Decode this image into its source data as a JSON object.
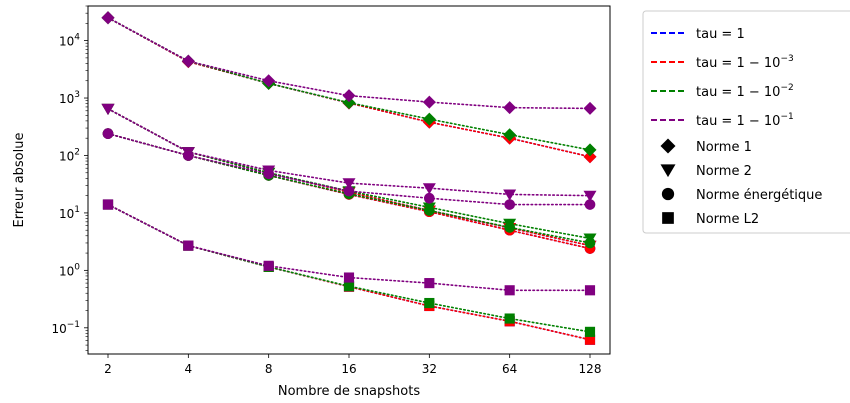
{
  "chart_data": {
    "type": "line",
    "title": "",
    "xlabel": "Nombre de snapshots",
    "ylabel": "Erreur absolue",
    "x": [
      2,
      4,
      8,
      16,
      32,
      64,
      128
    ],
    "x_scale": "log2",
    "y_scale": "log10",
    "ylim": [
      0.035,
      40000
    ],
    "x_ticks": [
      "2",
      "4",
      "8",
      "16",
      "32",
      "64",
      "128"
    ],
    "y_ticks": [
      {
        "value": 0.1,
        "base": "10",
        "exp": "−1"
      },
      {
        "value": 1,
        "base": "10",
        "exp": "0"
      },
      {
        "value": 10,
        "base": "10",
        "exp": "1"
      },
      {
        "value": 100,
        "base": "10",
        "exp": "2"
      },
      {
        "value": 1000,
        "base": "10",
        "exp": "3"
      },
      {
        "value": 10000,
        "base": "10",
        "exp": "4"
      }
    ],
    "grid": false,
    "legend_position": "outside-right",
    "tau_series": [
      {
        "label": "tau = 1",
        "label_parts": {
          "base": "tau = 1",
          "exp": ""
        },
        "color": "#0000ff"
      },
      {
        "label": "tau = 1 − 10⁻³",
        "label_parts": {
          "base": "tau = 1 − 10",
          "exp": "−3"
        },
        "color": "#ff0000"
      },
      {
        "label": "tau = 1 − 10⁻²",
        "label_parts": {
          "base": "tau = 1 − 10",
          "exp": "−2"
        },
        "color": "#008000"
      },
      {
        "label": "tau = 1 − 10⁻¹",
        "label_parts": {
          "base": "tau = 1 − 10",
          "exp": "−1"
        },
        "color": "#800080"
      }
    ],
    "norms": [
      {
        "label": "Norme 1",
        "marker": "diamond"
      },
      {
        "label": "Norme 2",
        "marker": "triangle-down"
      },
      {
        "label": "Norme énergétique",
        "marker": "circle"
      },
      {
        "label": "Norme L2",
        "marker": "square"
      }
    ],
    "series": [
      {
        "tau": 0,
        "norm": 0,
        "values": [
          25000,
          4300,
          1800,
          820,
          380,
          200,
          95
        ]
      },
      {
        "tau": 1,
        "norm": 0,
        "values": [
          25000,
          4300,
          1800,
          820,
          380,
          200,
          95
        ]
      },
      {
        "tau": 2,
        "norm": 0,
        "values": [
          25000,
          4400,
          1800,
          830,
          430,
          230,
          125
        ]
      },
      {
        "tau": 3,
        "norm": 0,
        "values": [
          25000,
          4400,
          2000,
          1100,
          850,
          680,
          660
        ]
      },
      {
        "tau": 0,
        "norm": 1,
        "values": [
          650,
          115,
          50,
          23,
          11,
          5.5,
          2.7
        ]
      },
      {
        "tau": 1,
        "norm": 1,
        "values": [
          650,
          115,
          50,
          23,
          11,
          5.5,
          2.7
        ]
      },
      {
        "tau": 2,
        "norm": 1,
        "values": [
          650,
          115,
          50,
          24,
          12.5,
          6.5,
          3.6
        ]
      },
      {
        "tau": 3,
        "norm": 1,
        "values": [
          650,
          115,
          55,
          33,
          27,
          21,
          20
        ]
      },
      {
        "tau": 0,
        "norm": 2,
        "values": [
          240,
          100,
          45,
          21,
          10.5,
          5.0,
          2.4
        ]
      },
      {
        "tau": 1,
        "norm": 2,
        "values": [
          240,
          100,
          45,
          21,
          10.5,
          5.0,
          2.4
        ]
      },
      {
        "tau": 2,
        "norm": 2,
        "values": [
          240,
          100,
          45,
          21.5,
          11,
          5.6,
          3.0
        ]
      },
      {
        "tau": 3,
        "norm": 2,
        "values": [
          240,
          100,
          48,
          24,
          18,
          14,
          14
        ]
      },
      {
        "tau": 0,
        "norm": 3,
        "values": [
          14,
          2.7,
          1.15,
          0.52,
          0.24,
          0.13,
          0.062
        ]
      },
      {
        "tau": 1,
        "norm": 3,
        "values": [
          14,
          2.7,
          1.15,
          0.52,
          0.24,
          0.13,
          0.062
        ]
      },
      {
        "tau": 2,
        "norm": 3,
        "values": [
          14,
          2.7,
          1.15,
          0.53,
          0.27,
          0.145,
          0.085
        ]
      },
      {
        "tau": 3,
        "norm": 3,
        "values": [
          14,
          2.7,
          1.2,
          0.75,
          0.6,
          0.45,
          0.45
        ]
      }
    ]
  }
}
